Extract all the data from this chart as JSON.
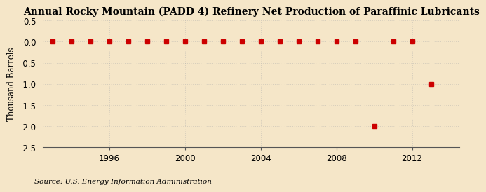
{
  "title": "Annual Rocky Mountain (PADD 4) Refinery Net Production of Paraffinic Lubricants",
  "ylabel": "Thousand Barrels",
  "source": "Source: U.S. Energy Information Administration",
  "background_color": "#f5e6c8",
  "years": [
    1993,
    1994,
    1995,
    1996,
    1997,
    1998,
    1999,
    2000,
    2001,
    2002,
    2003,
    2004,
    2005,
    2006,
    2007,
    2008,
    2009,
    2010,
    2011,
    2012,
    2013
  ],
  "values": [
    0,
    0,
    0,
    0,
    0,
    0,
    0,
    0,
    0,
    0,
    0,
    0,
    0,
    0,
    0,
    0,
    0,
    -2,
    0,
    0,
    -1
  ],
  "marker_color": "#cc0000",
  "marker_size": 4,
  "xlim": [
    1992.5,
    2014.5
  ],
  "ylim": [
    -2.5,
    0.5
  ],
  "xticks": [
    1996,
    2000,
    2004,
    2008,
    2012
  ],
  "yticks": [
    0.5,
    0.0,
    -0.5,
    -1.0,
    -1.5,
    -2.0,
    -2.5
  ],
  "title_fontsize": 10,
  "axis_fontsize": 8.5,
  "source_fontsize": 7.5,
  "grid_color": "#aaaaaa",
  "grid_alpha": 0.8,
  "grid_linewidth": 0.5
}
